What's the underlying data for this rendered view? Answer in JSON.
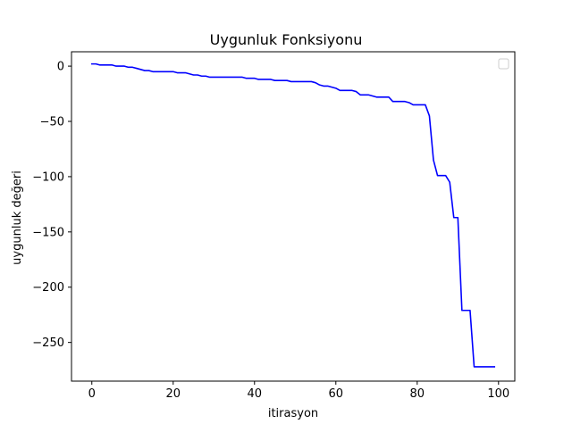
{
  "chart_data": {
    "type": "line",
    "title": "Uygunluk Fonksiyonu",
    "xlabel": "itirasyon",
    "ylabel": "uygunluk değeri",
    "xlim": [
      -5,
      104
    ],
    "ylim": [
      -285,
      13
    ],
    "xticks": [
      0,
      20,
      40,
      60,
      80,
      100
    ],
    "yticks": [
      0,
      -50,
      -100,
      -150,
      -200,
      -250
    ],
    "xtick_labels": [
      "0",
      "20",
      "40",
      "60",
      "80",
      "100"
    ],
    "ytick_labels": [
      "0",
      "−50",
      "−100",
      "−150",
      "−200",
      "−250"
    ],
    "grid": false,
    "legend": {
      "placement": "top-right",
      "entries": []
    },
    "colors": {
      "line": "#0000ff",
      "axes": "#000000",
      "background": "#ffffff"
    },
    "series": [
      {
        "x": [
          0,
          1,
          2,
          3,
          4,
          5,
          6,
          7,
          8,
          9,
          10,
          11,
          12,
          13,
          14,
          15,
          16,
          17,
          18,
          19,
          20,
          21,
          22,
          23,
          24,
          25,
          26,
          27,
          28,
          29,
          30,
          31,
          32,
          33,
          34,
          35,
          36,
          37,
          38,
          39,
          40,
          41,
          42,
          43,
          44,
          45,
          46,
          47,
          48,
          49,
          50,
          51,
          52,
          53,
          54,
          55,
          56,
          57,
          58,
          59,
          60,
          61,
          62,
          63,
          64,
          65,
          66,
          67,
          68,
          69,
          70,
          71,
          72,
          73,
          74,
          75,
          76,
          77,
          78,
          79,
          80,
          81,
          82,
          83,
          84,
          85,
          86,
          87,
          88,
          89,
          90,
          91,
          92,
          93,
          94,
          95,
          96,
          97,
          98,
          99
        ],
        "values": [
          2,
          2,
          1,
          1,
          1,
          1,
          0,
          0,
          0,
          -1,
          -1,
          -2,
          -3,
          -4,
          -4,
          -5,
          -5,
          -5,
          -5,
          -5,
          -5,
          -6,
          -6,
          -6,
          -7,
          -8,
          -8,
          -9,
          -9,
          -10,
          -10,
          -10,
          -10,
          -10,
          -10,
          -10,
          -10,
          -10,
          -11,
          -11,
          -11,
          -12,
          -12,
          -12,
          -12,
          -13,
          -13,
          -13,
          -13,
          -14,
          -14,
          -14,
          -14,
          -14,
          -14,
          -15,
          -17,
          -18,
          -18,
          -19,
          -20,
          -22,
          -22,
          -22,
          -22,
          -23,
          -26,
          -26,
          -26,
          -27,
          -28,
          -28,
          -28,
          -28,
          -32,
          -32,
          -32,
          -32,
          -33,
          -35,
          -35,
          -35,
          -35,
          -45,
          -85,
          -99,
          -99,
          -99,
          -105,
          -137,
          -137,
          -221,
          -221,
          -221,
          -272,
          -272,
          -272,
          -272,
          -272,
          -272
        ]
      }
    ]
  }
}
